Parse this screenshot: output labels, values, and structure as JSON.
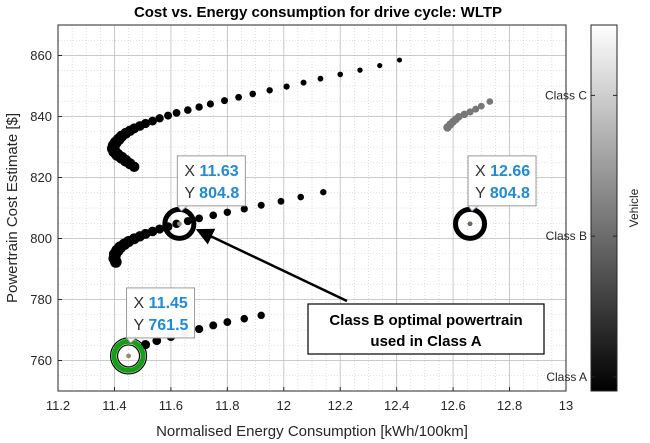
{
  "chart_data": {
    "type": "scatter",
    "title": "Cost vs. Energy consumption for drive cycle: WLTP",
    "xlabel": "Normalised Energy Consumption [kWh/100km]",
    "ylabel": "Powertrain Cost Estimate [$]",
    "xlim": [
      11.2,
      13
    ],
    "ylim": [
      750,
      870
    ],
    "x_ticks": [
      11.2,
      11.4,
      11.6,
      11.8,
      12,
      12.2,
      12.4,
      12.6,
      12.8,
      13
    ],
    "x_tick_labels": [
      "11.2",
      "11.4",
      "11.6",
      "11.8",
      "12",
      "12.2",
      "12.4",
      "12.6",
      "12.8",
      "13"
    ],
    "y_ticks": [
      760,
      780,
      800,
      820,
      840,
      860
    ],
    "y_tick_labels": [
      "760",
      "780",
      "800",
      "820",
      "840",
      "860"
    ],
    "grid": true,
    "minor_grid": true,
    "colorbar": {
      "label": "Vehicle",
      "ticks": [
        {
          "label": "Class C",
          "value": 3
        },
        {
          "label": "Class B",
          "value": 2
        },
        {
          "label": "Class A",
          "value": 1
        }
      ],
      "range": [
        0.9,
        3.5
      ],
      "color_low": "#000000",
      "color_high": "#ffffff"
    },
    "series": [
      {
        "class_value": 3,
        "color": "#000000",
        "x": [
          11.47,
          11.455,
          11.44,
          11.425,
          11.41,
          11.4,
          11.395,
          11.398,
          11.405,
          11.415,
          11.425,
          11.44,
          11.455,
          11.47,
          11.49,
          11.51,
          11.535,
          11.56,
          11.59,
          11.62,
          11.66,
          11.7,
          11.74,
          11.79,
          11.84,
          11.89,
          11.95,
          12.01,
          12.07,
          12.13,
          12.2,
          12.27,
          12.34,
          12.41
        ],
        "y": [
          823.5,
          824.5,
          825.5,
          826.5,
          827.5,
          828.5,
          829.5,
          830.5,
          831.5,
          832.5,
          833.5,
          834.5,
          835.3,
          836.1,
          836.9,
          837.7,
          838.5,
          839.4,
          840.3,
          841.2,
          842.1,
          843.1,
          844.1,
          845.2,
          846.3,
          847.4,
          848.6,
          849.8,
          851.1,
          852.4,
          853.8,
          855.2,
          856.7,
          858.5
        ],
        "sizes": [
          5.2,
          5.5,
          5.8,
          6.0,
          6.1,
          6.1,
          6.1,
          6.0,
          5.9,
          5.8,
          5.6,
          5.4,
          5.2,
          5.0,
          4.8,
          4.6,
          4.4,
          4.2,
          4.0,
          3.9,
          3.8,
          3.7,
          3.6,
          3.5,
          3.4,
          3.3,
          3.2,
          3.1,
          3.0,
          2.9,
          2.8,
          2.7,
          2.6,
          2.5
        ]
      },
      {
        "class_value": 2,
        "color": "#000000",
        "x": [
          11.405,
          11.4,
          11.402,
          11.41,
          11.42,
          11.435,
          11.45,
          11.47,
          11.49,
          11.51,
          11.535,
          11.56,
          11.59,
          11.62,
          11.66,
          11.7,
          11.75,
          11.8,
          11.86,
          11.92,
          11.99,
          12.06,
          12.14
        ],
        "y": [
          792.3,
          793.5,
          794.8,
          796.0,
          797.1,
          798.1,
          799.0,
          799.9,
          800.7,
          801.5,
          802.3,
          803.1,
          803.9,
          804.8,
          805.7,
          806.6,
          807.6,
          808.6,
          809.7,
          810.9,
          812.2,
          813.6,
          815.2
        ],
        "sizes": [
          5.8,
          6.0,
          6.1,
          6.1,
          6.0,
          5.8,
          5.6,
          5.4,
          5.2,
          5.0,
          4.8,
          4.6,
          4.4,
          4.2,
          4.0,
          3.9,
          3.8,
          3.7,
          3.6,
          3.5,
          3.4,
          3.3,
          3.2
        ]
      },
      {
        "class_value": 2,
        "color": "#777777",
        "x": [
          12.58,
          12.59,
          12.6,
          12.61,
          12.62,
          12.64,
          12.66,
          12.68,
          12.7,
          12.73
        ],
        "y": [
          836.4,
          837.4,
          838.3,
          839.1,
          839.9,
          840.7,
          841.5,
          842.4,
          843.4,
          844.9
        ],
        "sizes": [
          4.2,
          4.1,
          4.0,
          3.9,
          3.8,
          3.7,
          3.6,
          3.5,
          3.4,
          3.3
        ]
      },
      {
        "class_value": 1,
        "color": "#000000",
        "x": [
          11.51,
          11.55,
          11.6,
          11.65,
          11.7,
          11.75,
          11.8,
          11.86,
          11.92
        ],
        "y": [
          765.2,
          766.5,
          767.8,
          769.0,
          770.3,
          771.5,
          772.6,
          773.7,
          774.8
        ],
        "sizes": [
          4.6,
          4.4,
          4.3,
          4.2,
          4.1,
          4.0,
          3.9,
          3.8,
          3.7
        ]
      }
    ],
    "highlighted": [
      {
        "x": 11.63,
        "y": 804.8,
        "ring_color": "#000000",
        "inner_ring_color": "",
        "point_color": "#8c8c78"
      },
      {
        "x": 12.66,
        "y": 804.8,
        "ring_color": "#000000",
        "inner_ring_color": "",
        "point_color": "#6b6b55"
      },
      {
        "x": 11.45,
        "y": 761.5,
        "ring_color": "#14a014",
        "inner_ring_color": "#000000",
        "point_color": "#8c8c78"
      }
    ],
    "datatips": [
      {
        "x_label": "X",
        "x_value": "11.63",
        "y_label": "Y",
        "y_value": "804.8",
        "anchor_x": 11.63,
        "anchor_y": 804.8
      },
      {
        "x_label": "X",
        "x_value": "12.66",
        "y_label": "Y",
        "y_value": "804.8",
        "anchor_x": 12.66,
        "anchor_y": 804.8
      },
      {
        "x_label": "X",
        "x_value": "11.45",
        "y_label": "Y",
        "y_value": "761.5",
        "anchor_x": 11.45,
        "anchor_y": 761.5
      }
    ],
    "annotation": {
      "lines": [
        "Class B optimal powertrain",
        "used in Class A"
      ],
      "arrow_to_x": 11.63,
      "arrow_to_y": 804.8
    }
  }
}
